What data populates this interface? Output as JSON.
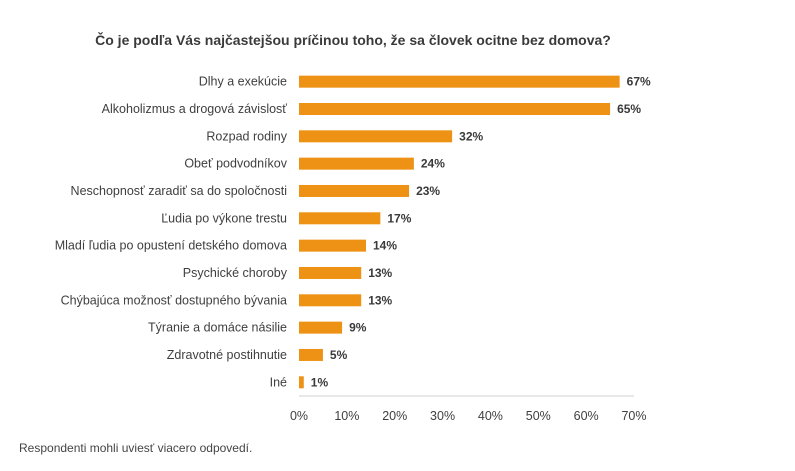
{
  "chart_data": {
    "type": "bar",
    "orientation": "horizontal",
    "title": "Čo je podľa Vás najčastejšou príčinou toho, že sa človek ocitne bez domova?",
    "categories": [
      "Dlhy a exekúcie",
      "Alkoholizmus a drogová závislosť",
      "Rozpad rodiny",
      "Obeť podvodníkov",
      "Neschopnosť zaradiť sa do spoločnosti",
      "Ľudia po výkone trestu",
      "Mladí ľudia po opustení detského domova",
      "Psychické choroby",
      "Chýbajúca možnosť dostupného bývania",
      "Týranie a domáce násilie",
      "Zdravotné postihnutie",
      "Iné"
    ],
    "values": [
      67,
      65,
      32,
      24,
      23,
      17,
      14,
      13,
      13,
      9,
      5,
      1
    ],
    "value_labels": [
      "67%",
      "65%",
      "32%",
      "24%",
      "23%",
      "17%",
      "14%",
      "13%",
      "13%",
      "9%",
      "5%",
      "1%"
    ],
    "xlim": [
      0,
      70
    ],
    "x_ticks": [
      0,
      10,
      20,
      30,
      40,
      50,
      60,
      70
    ],
    "x_tick_labels": [
      "0%",
      "10%",
      "20%",
      "30%",
      "40%",
      "50%",
      "60%",
      "70%"
    ],
    "grid": false,
    "legend": "none",
    "bar_color": "#EE9215",
    "note": "Respondenti mohli uviesť viacero odpovedí."
  }
}
